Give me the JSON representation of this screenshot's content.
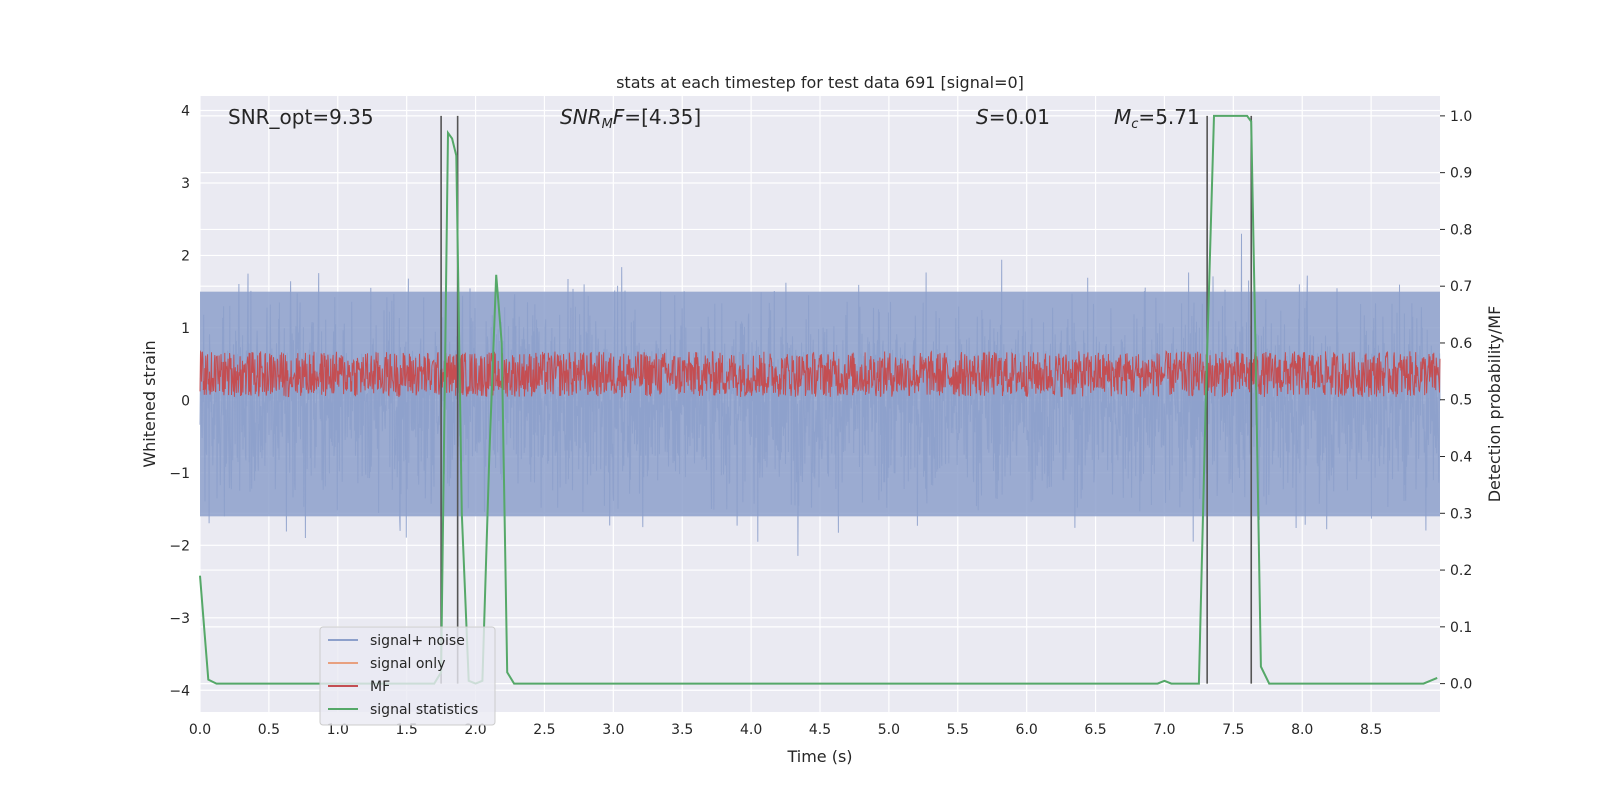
{
  "chart_data": {
    "type": "line",
    "title": "stats at each timestep for test data 691 [signal=0]",
    "xlabel": "Time (s)",
    "ylabel_left": "Whitened strain",
    "ylabel_right": "Detection probability/MF",
    "xlim": [
      0.0,
      9.0
    ],
    "ylim_left": [
      -4.3,
      4.2
    ],
    "ylim_right": [
      -0.05,
      1.035
    ],
    "x_ticks": [
      "0.0",
      "0.5",
      "1.0",
      "1.5",
      "2.0",
      "2.5",
      "3.0",
      "3.5",
      "4.0",
      "4.5",
      "5.0",
      "5.5",
      "6.0",
      "6.5",
      "7.0",
      "7.5",
      "8.0",
      "8.5"
    ],
    "y_left_ticks": [
      "4",
      "3",
      "2",
      "1",
      "0",
      "−1",
      "−2",
      "−3",
      "−4"
    ],
    "y_right_ticks": [
      "1.0",
      "0.9",
      "0.8",
      "0.7",
      "0.6",
      "0.5",
      "0.4",
      "0.3",
      "0.2",
      "0.1",
      "0.0"
    ],
    "grid": true,
    "annotations": {
      "snr_opt": "SNR_opt=9.35",
      "snr_mf": "[4.35]",
      "s_value": "0.01",
      "mc_value": "5.71"
    },
    "legend": {
      "placement": "lower-left",
      "entries": [
        "signal+ noise",
        "signal only",
        "MF",
        "signal statistics"
      ]
    },
    "colors": {
      "signal_noise": "#8da0cb",
      "signal_only": "#e8a07f",
      "mf": "#c44e52",
      "signal_statistics": "#55a868",
      "vlines": "#555555",
      "background": "#eaeaf2"
    },
    "noise_band_left": {
      "typical_min": -1.6,
      "typical_max": 1.5,
      "peak_max": 3.35,
      "peak_min": -3.7
    },
    "mf_band_right": {
      "min": 0.51,
      "max": 0.58
    },
    "vertical_lines_x": [
      1.75,
      1.87,
      7.31,
      7.63
    ],
    "series": [
      {
        "name": "signal statistics",
        "axis": "right",
        "x": [
          0.0,
          0.06,
          0.12,
          0.5,
          1.0,
          1.5,
          1.7,
          1.75,
          1.8,
          1.83,
          1.86,
          1.9,
          1.95,
          2.0,
          2.05,
          2.1,
          2.15,
          2.19,
          2.23,
          2.28,
          2.32,
          3.0,
          4.0,
          5.0,
          6.0,
          6.5,
          6.95,
          7.0,
          7.05,
          7.25,
          7.3,
          7.36,
          7.4,
          7.6,
          7.63,
          7.66,
          7.7,
          7.76,
          8.0,
          8.5,
          8.88,
          8.98
        ],
        "y": [
          0.19,
          0.007,
          0.0,
          0.0,
          0.0,
          0.0,
          0.0,
          0.02,
          0.97,
          0.96,
          0.93,
          0.3,
          0.005,
          0.0,
          0.005,
          0.4,
          0.72,
          0.6,
          0.02,
          0.0,
          0.0,
          0.0,
          0.0,
          0.0,
          0.0,
          0.0,
          0.0,
          0.005,
          0.0,
          0.0,
          0.5,
          1.0,
          1.0,
          1.0,
          0.99,
          0.6,
          0.03,
          0.0,
          0.0,
          0.0,
          0.0,
          0.01
        ]
      }
    ]
  }
}
